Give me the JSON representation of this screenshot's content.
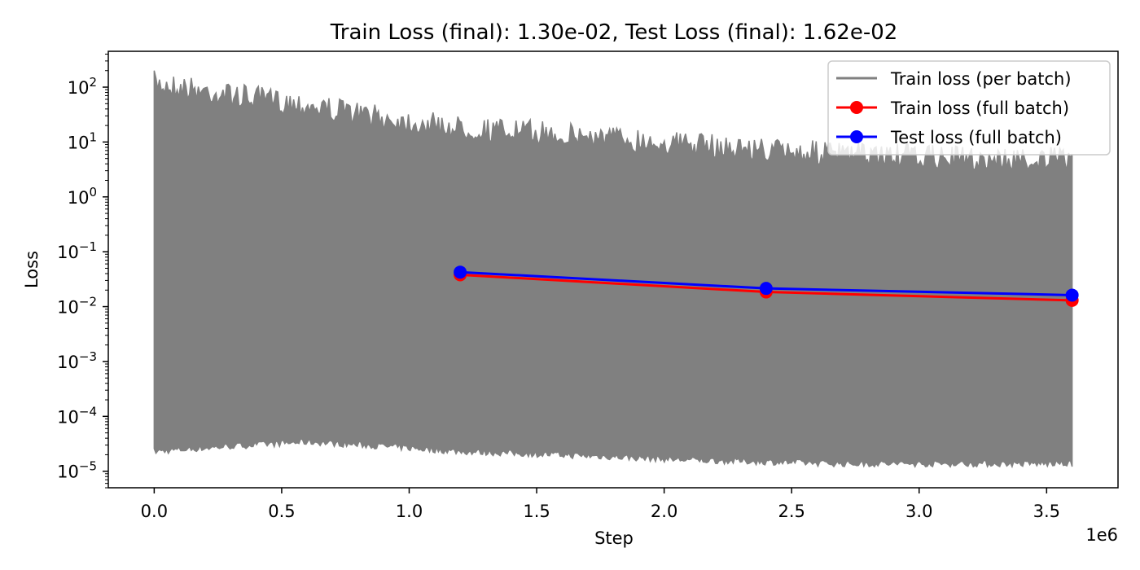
{
  "chart_data": {
    "type": "line",
    "title": "Train Loss (final): 1.30e-02, Test Loss (final): 1.62e-02",
    "xlabel": "Step",
    "ylabel": "Loss",
    "x_offset_label": "1e6",
    "xlim": [
      -180000,
      3780000
    ],
    "ylim": [
      5e-06,
      450
    ],
    "yscale": "log",
    "x_ticks": [
      {
        "value": 0,
        "label": "0.0"
      },
      {
        "value": 500000,
        "label": "0.5"
      },
      {
        "value": 1000000,
        "label": "1.0"
      },
      {
        "value": 1500000,
        "label": "1.5"
      },
      {
        "value": 2000000,
        "label": "2.0"
      },
      {
        "value": 2500000,
        "label": "2.5"
      },
      {
        "value": 3000000,
        "label": "3.0"
      },
      {
        "value": 3500000,
        "label": "3.5"
      }
    ],
    "y_ticks": [
      {
        "value": 1e-05,
        "base": "10",
        "exp": "−5"
      },
      {
        "value": 0.0001,
        "base": "10",
        "exp": "−4"
      },
      {
        "value": 0.001,
        "base": "10",
        "exp": "−3"
      },
      {
        "value": 0.01,
        "base": "10",
        "exp": "−2"
      },
      {
        "value": 0.1,
        "base": "10",
        "exp": "−1"
      },
      {
        "value": 1,
        "base": "10",
        "exp": "0"
      },
      {
        "value": 10,
        "base": "10",
        "exp": "1"
      },
      {
        "value": 100,
        "base": "10",
        "exp": "2"
      }
    ],
    "grid": false,
    "legend_position": "top-right",
    "series": [
      {
        "name": "Train loss (per batch)",
        "color": "#808080",
        "style": "band",
        "x_range": [
          0,
          3600000
        ],
        "upper_envelope": [
          [
            0,
            200
          ],
          [
            300000,
            120
          ],
          [
            600000,
            80
          ],
          [
            900000,
            45
          ],
          [
            1200000,
            30
          ],
          [
            1500000,
            25
          ],
          [
            1800000,
            20
          ],
          [
            2100000,
            15
          ],
          [
            2400000,
            12
          ],
          [
            2700000,
            10
          ],
          [
            3000000,
            9
          ],
          [
            3300000,
            8
          ],
          [
            3600000,
            8
          ]
        ],
        "lower_envelope": [
          [
            0,
            2e-05
          ],
          [
            300000,
            2.5e-05
          ],
          [
            600000,
            3e-05
          ],
          [
            900000,
            2.5e-05
          ],
          [
            1200000,
            2e-05
          ],
          [
            1500000,
            1.8e-05
          ],
          [
            1800000,
            1.6e-05
          ],
          [
            2100000,
            1.4e-05
          ],
          [
            2400000,
            1.3e-05
          ],
          [
            2700000,
            1.2e-05
          ],
          [
            3000000,
            1.2e-05
          ],
          [
            3300000,
            1.2e-05
          ],
          [
            3600000,
            1.2e-05
          ]
        ]
      },
      {
        "name": "Train loss (full batch)",
        "color": "#ff0000",
        "style": "line-marker",
        "x": [
          1200000,
          2400000,
          3600000
        ],
        "y": [
          0.038,
          0.0185,
          0.013
        ]
      },
      {
        "name": "Test loss (full batch)",
        "color": "#0000ff",
        "style": "line-marker",
        "x": [
          1200000,
          2400000,
          3600000
        ],
        "y": [
          0.0425,
          0.0215,
          0.0162
        ]
      }
    ]
  }
}
